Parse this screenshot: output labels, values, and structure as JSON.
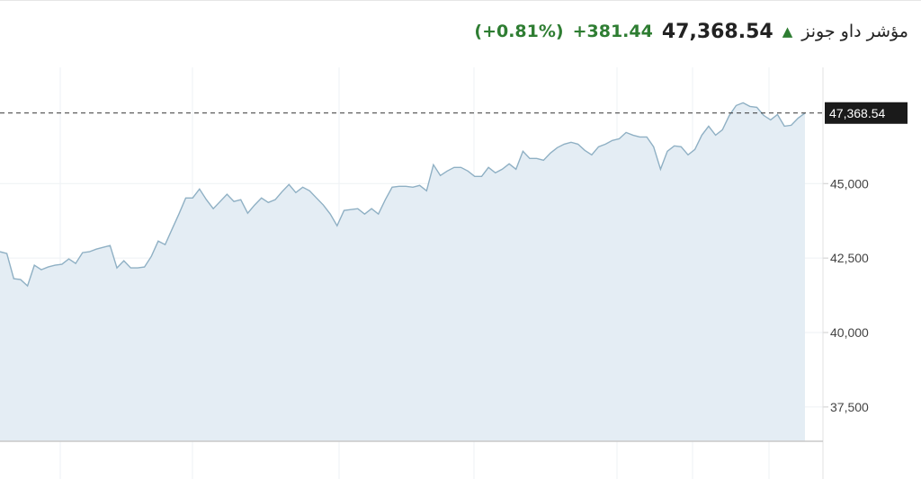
{
  "header": {
    "name": "مؤشر داو جونز",
    "direction_icon": "arrow-up-icon",
    "price": "47,368.54",
    "change": "+381.44",
    "change_percent": "(+0.81%)",
    "up_color": "#2e7d32"
  },
  "chart_data": {
    "type": "area",
    "title": "",
    "xlabel": "",
    "ylabel": "",
    "ylim": [
      36350,
      48900
    ],
    "yticks": [
      37500,
      40000,
      42500,
      45000
    ],
    "ytick_labels": [
      "37,500",
      "40,000",
      "42,500",
      "45,000"
    ],
    "last_value": 47368.54,
    "last_value_label": "47,368.54",
    "grid": true,
    "line_color": "#8fb0c4",
    "fill_color": "#e4edf4",
    "values": [
      42711,
      42651,
      41807,
      41777,
      41566,
      42259,
      42108,
      42199,
      42259,
      42289,
      42470,
      42319,
      42681,
      42711,
      42801,
      42861,
      42922,
      42169,
      42410,
      42169,
      42169,
      42199,
      42560,
      43072,
      42952,
      43464,
      43976,
      44518,
      44518,
      44819,
      44458,
      44157,
      44398,
      44639,
      44398,
      44458,
      44006,
      44277,
      44518,
      44367,
      44458,
      44729,
      44970,
      44699,
      44880,
      44759,
      44518,
      44277,
      43976,
      43584,
      44096,
      44127,
      44157,
      43976,
      44157,
      43976,
      44458,
      44880,
      44910,
      44910,
      44880,
      44940,
      44759,
      45633,
      45271,
      45422,
      45542,
      45542,
      45422,
      45241,
      45241,
      45542,
      45361,
      45482,
      45663,
      45482,
      46084,
      45843,
      45843,
      45783,
      46024,
      46205,
      46325,
      46386,
      46325,
      46114,
      45964,
      46235,
      46325,
      46446,
      46506,
      46717,
      46626,
      46566,
      46566,
      46235,
      45482,
      46084,
      46265,
      46235,
      45964,
      46145,
      46626,
      46928,
      46626,
      46807,
      47289,
      47620,
      47711,
      47590,
      47560,
      47289,
      47139,
      47319,
      46928,
      46958,
      47199,
      47368.54
    ]
  }
}
